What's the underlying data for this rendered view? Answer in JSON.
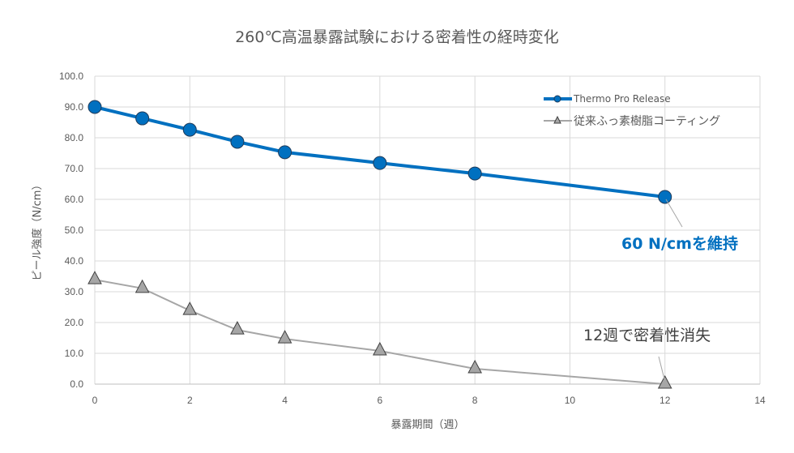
{
  "chart_data": {
    "type": "line",
    "title": "260℃高温暴露試験における密着性の経時変化",
    "xlabel": "暴露期間（週）",
    "ylabel": "ピール強度（N/cm）",
    "xlim": [
      0,
      14
    ],
    "ylim": [
      0,
      100
    ],
    "x_ticks": [
      "0",
      "2",
      "4",
      "6",
      "8",
      "10",
      "12",
      "14"
    ],
    "y_ticks": [
      "0.0",
      "10.0",
      "20.0",
      "30.0",
      "40.0",
      "50.0",
      "60.0",
      "70.0",
      "80.0",
      "90.0",
      "100.0"
    ],
    "grid": true,
    "legend_position": "top-right",
    "series": [
      {
        "name": "Thermo Pro Release",
        "color": "#0070C0",
        "marker": "circle",
        "x": [
          0,
          1,
          2,
          3,
          4,
          6,
          8,
          12
        ],
        "y": [
          90.0,
          86.3,
          82.6,
          78.7,
          75.3,
          71.8,
          68.4,
          60.8
        ]
      },
      {
        "name": "従来ふっ素樹脂コーティング",
        "color": "#A6A6A6",
        "marker": "triangle",
        "x": [
          0,
          1,
          2,
          3,
          4,
          6,
          8,
          12
        ],
        "y": [
          33.9,
          31.1,
          23.9,
          17.6,
          14.7,
          10.8,
          5.0,
          0.0
        ]
      }
    ],
    "annotations": [
      {
        "text": "60 N/cmを維持",
        "x": 12,
        "y": 60.8,
        "color": "#0070C0"
      },
      {
        "text": "12週で密着性消失",
        "x": 12,
        "y": 0,
        "color": "#404040"
      }
    ]
  }
}
